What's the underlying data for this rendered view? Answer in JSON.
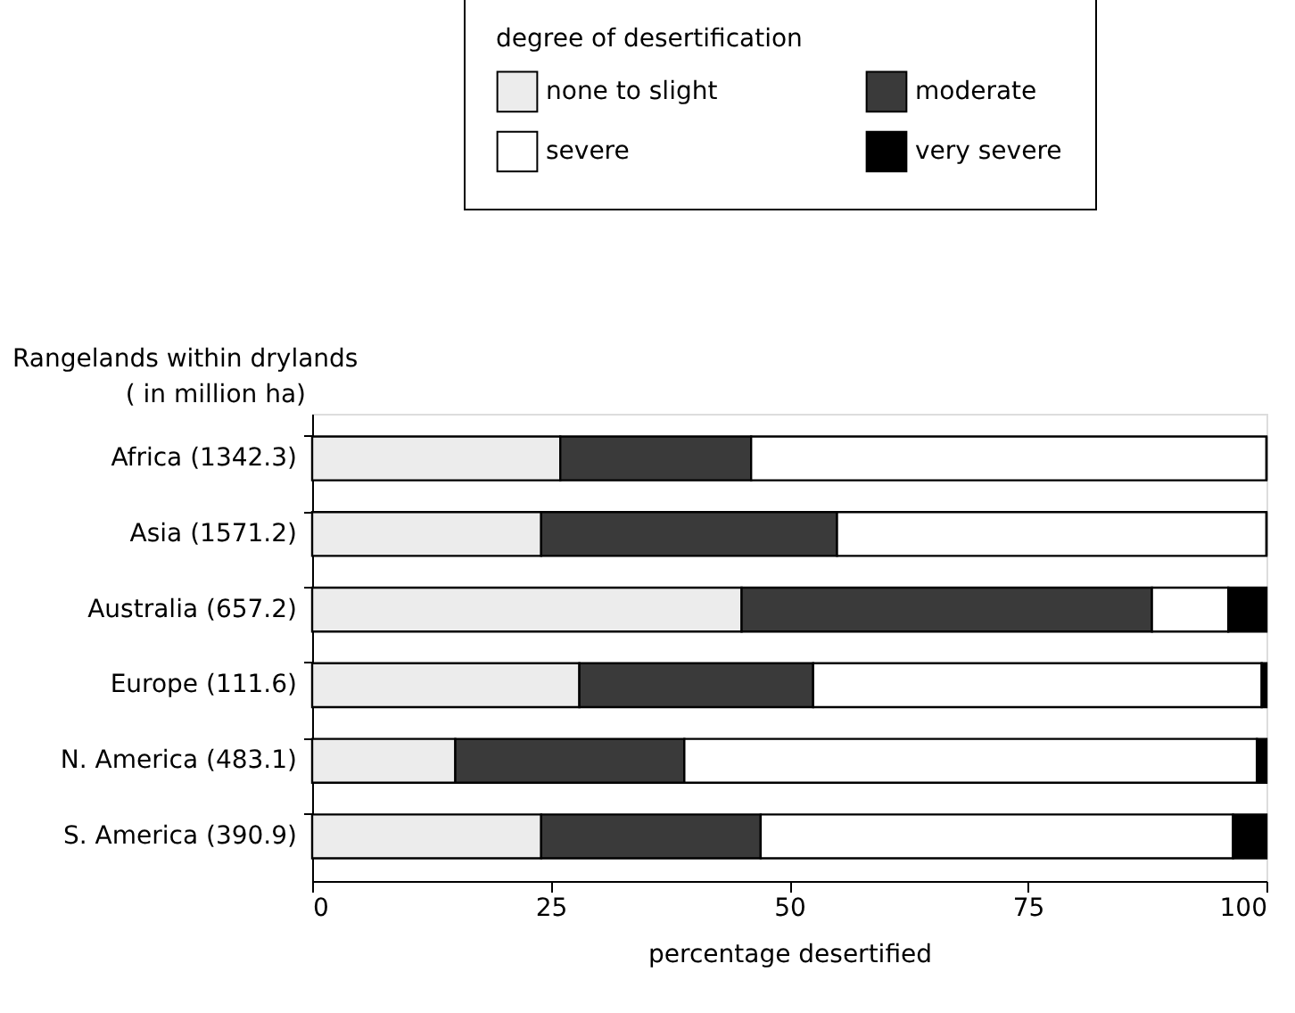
{
  "chart_data": {
    "type": "bar",
    "orientation": "horizontal",
    "stacked": true,
    "title": "Rangelands within drylands",
    "ylabel": "( in million ha)",
    "xlabel": "percentage desertified",
    "legend_title": "degree of desertification",
    "legend": "top",
    "categories": [
      "Africa (1342.3)",
      "Asia (1571.2)",
      "Australia (657.2)",
      "Europe (111.6)",
      "N. America (483.1)",
      "S. America (390.9)"
    ],
    "series": [
      {
        "name": "none to slight",
        "color": "#ececec",
        "values": [
          26,
          24,
          45,
          28,
          15,
          24
        ]
      },
      {
        "name": "moderate",
        "color": "#3a3a3a",
        "values": [
          20,
          31,
          43,
          24.5,
          24,
          23
        ]
      },
      {
        "name": "severe",
        "color": "#ffffff",
        "values": [
          54,
          45,
          8,
          47,
          60,
          49.5
        ]
      },
      {
        "name": "very severe",
        "color": "#000000",
        "values": [
          0,
          0,
          4,
          0.5,
          1,
          3.5
        ]
      }
    ],
    "xlim": [
      0,
      100
    ],
    "xticks": [
      0,
      25,
      50,
      75,
      100
    ],
    "grid": false
  }
}
